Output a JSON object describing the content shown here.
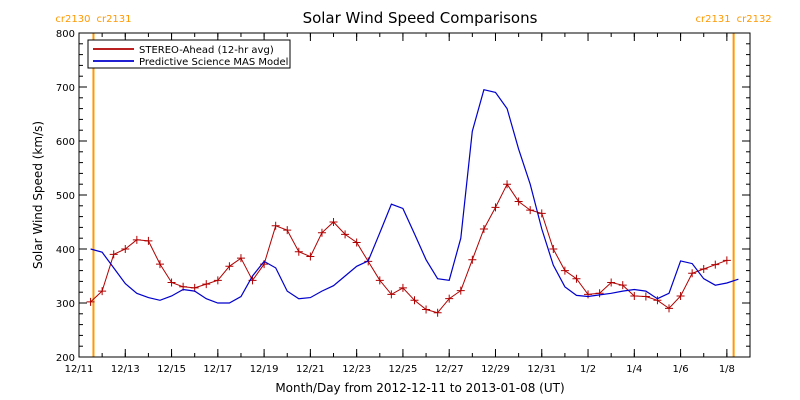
{
  "chart_data": {
    "type": "line",
    "title": "Solar Wind Speed Comparisons",
    "xlabel": "Month/Day from 2012-12-11 to 2013-01-08 (UT)",
    "ylabel": "Solar Wind Speed (km/s)",
    "x_unit": "date",
    "xlim": [
      "2012-12-11",
      "2013-01-09"
    ],
    "ylim": [
      200,
      800
    ],
    "x_ticks": [
      {
        "date": "2012-12-11",
        "label": "12/11"
      },
      {
        "date": "2012-12-13",
        "label": "12/13"
      },
      {
        "date": "2012-12-15",
        "label": "12/15"
      },
      {
        "date": "2012-12-17",
        "label": "12/17"
      },
      {
        "date": "2012-12-19",
        "label": "12/19"
      },
      {
        "date": "2012-12-21",
        "label": "12/21"
      },
      {
        "date": "2012-12-23",
        "label": "12/23"
      },
      {
        "date": "2012-12-25",
        "label": "12/25"
      },
      {
        "date": "2012-12-27",
        "label": "12/27"
      },
      {
        "date": "2012-12-29",
        "label": "12/29"
      },
      {
        "date": "2012-12-31",
        "label": "12/31"
      },
      {
        "date": "2013-01-02",
        "label": "1/2"
      },
      {
        "date": "2013-01-04",
        "label": "1/4"
      },
      {
        "date": "2013-01-06",
        "label": "1/6"
      },
      {
        "date": "2013-01-08",
        "label": "1/8"
      }
    ],
    "y_ticks": [
      200,
      300,
      400,
      500,
      600,
      700,
      800
    ],
    "legend_position": "top-left",
    "colors": {
      "stereo": "#b00000",
      "model": "#0000cc",
      "boundary": "#ff9900"
    },
    "series": [
      {
        "name": "STEREO-Ahead (12-hr avg)",
        "color": "#b00000",
        "marker": "plus",
        "points": [
          [
            "2012-12-11 12:00",
            302
          ],
          [
            "2012-12-12 00:00",
            322
          ],
          [
            "2012-12-12 12:00",
            390
          ],
          [
            "2012-12-13 00:00",
            400
          ],
          [
            "2012-12-13 12:00",
            417
          ],
          [
            "2012-12-14 00:00",
            415
          ],
          [
            "2012-12-14 12:00",
            372
          ],
          [
            "2012-12-15 00:00",
            338
          ],
          [
            "2012-12-15 12:00",
            330
          ],
          [
            "2012-12-16 00:00",
            328
          ],
          [
            "2012-12-16 12:00",
            335
          ],
          [
            "2012-12-17 00:00",
            342
          ],
          [
            "2012-12-17 12:00",
            368
          ],
          [
            "2012-12-18 00:00",
            383
          ],
          [
            "2012-12-18 12:00",
            342
          ],
          [
            "2012-12-19 00:00",
            372
          ],
          [
            "2012-12-19 12:00",
            443
          ],
          [
            "2012-12-20 00:00",
            435
          ],
          [
            "2012-12-20 12:00",
            395
          ],
          [
            "2012-12-21 00:00",
            386
          ],
          [
            "2012-12-21 12:00",
            430
          ],
          [
            "2012-12-22 00:00",
            450
          ],
          [
            "2012-12-22 12:00",
            427
          ],
          [
            "2012-12-23 00:00",
            412
          ],
          [
            "2012-12-23 12:00",
            377
          ],
          [
            "2012-12-24 00:00",
            342
          ],
          [
            "2012-12-24 12:00",
            316
          ],
          [
            "2012-12-25 00:00",
            328
          ],
          [
            "2012-12-25 12:00",
            305
          ],
          [
            "2012-12-26 00:00",
            288
          ],
          [
            "2012-12-26 12:00",
            282
          ],
          [
            "2012-12-27 00:00",
            308
          ],
          [
            "2012-12-27 12:00",
            323
          ],
          [
            "2012-12-28 00:00",
            380
          ],
          [
            "2012-12-28 12:00",
            437
          ],
          [
            "2012-12-29 00:00",
            477
          ],
          [
            "2012-12-29 12:00",
            520
          ],
          [
            "2012-12-30 00:00",
            488
          ],
          [
            "2012-12-30 12:00",
            472
          ],
          [
            "2012-12-31 00:00",
            466
          ],
          [
            "2012-12-31 12:00",
            400
          ],
          [
            "2013-01-01 00:00",
            360
          ],
          [
            "2013-01-01 12:00",
            345
          ],
          [
            "2013-01-02 00:00",
            316
          ],
          [
            "2013-01-02 12:00",
            318
          ],
          [
            "2013-01-03 00:00",
            338
          ],
          [
            "2013-01-03 12:00",
            333
          ],
          [
            "2013-01-04 00:00",
            313
          ],
          [
            "2013-01-04 12:00",
            312
          ],
          [
            "2013-01-05 00:00",
            305
          ],
          [
            "2013-01-05 12:00",
            290
          ],
          [
            "2013-01-06 00:00",
            313
          ],
          [
            "2013-01-06 12:00",
            355
          ],
          [
            "2013-01-07 00:00",
            363
          ],
          [
            "2013-01-07 12:00",
            371
          ],
          [
            "2013-01-08 00:00",
            379
          ]
        ]
      },
      {
        "name": "Predictive Science MAS Model",
        "color": "#0000cc",
        "marker": "none",
        "points": [
          [
            "2012-12-11 12:00",
            400
          ],
          [
            "2012-12-12 00:00",
            394
          ],
          [
            "2012-12-12 12:00",
            365
          ],
          [
            "2012-12-13 00:00",
            336
          ],
          [
            "2012-12-13 12:00",
            318
          ],
          [
            "2012-12-14 00:00",
            310
          ],
          [
            "2012-12-14 12:00",
            305
          ],
          [
            "2012-12-15 00:00",
            313
          ],
          [
            "2012-12-15 12:00",
            325
          ],
          [
            "2012-12-16 00:00",
            322
          ],
          [
            "2012-12-16 12:00",
            308
          ],
          [
            "2012-12-17 00:00",
            300
          ],
          [
            "2012-12-17 12:00",
            300
          ],
          [
            "2012-12-18 00:00",
            312
          ],
          [
            "2012-12-18 12:00",
            350
          ],
          [
            "2012-12-19 00:00",
            377
          ],
          [
            "2012-12-19 12:00",
            365
          ],
          [
            "2012-12-20 00:00",
            322
          ],
          [
            "2012-12-20 12:00",
            308
          ],
          [
            "2012-12-21 00:00",
            310
          ],
          [
            "2012-12-21 12:00",
            322
          ],
          [
            "2012-12-22 00:00",
            332
          ],
          [
            "2012-12-22 12:00",
            350
          ],
          [
            "2012-12-23 00:00",
            368
          ],
          [
            "2012-12-23 12:00",
            378
          ],
          [
            "2012-12-24 00:00",
            430
          ],
          [
            "2012-12-24 12:00",
            483
          ],
          [
            "2012-12-25 00:00",
            475
          ],
          [
            "2012-12-25 12:00",
            428
          ],
          [
            "2012-12-26 00:00",
            380
          ],
          [
            "2012-12-26 12:00",
            345
          ],
          [
            "2012-12-27 00:00",
            342
          ],
          [
            "2012-12-27 12:00",
            420
          ],
          [
            "2012-12-28 00:00",
            618
          ],
          [
            "2012-12-28 12:00",
            695
          ],
          [
            "2012-12-29 00:00",
            690
          ],
          [
            "2012-12-29 12:00",
            660
          ],
          [
            "2012-12-30 00:00",
            585
          ],
          [
            "2012-12-30 12:00",
            520
          ],
          [
            "2012-12-31 00:00",
            437
          ],
          [
            "2012-12-31 12:00",
            370
          ],
          [
            "2013-01-01 00:00",
            330
          ],
          [
            "2013-01-01 12:00",
            314
          ],
          [
            "2013-01-02 00:00",
            312
          ],
          [
            "2013-01-02 12:00",
            315
          ],
          [
            "2013-01-03 00:00",
            318
          ],
          [
            "2013-01-03 12:00",
            322
          ],
          [
            "2013-01-04 00:00",
            325
          ],
          [
            "2013-01-04 12:00",
            322
          ],
          [
            "2013-01-05 00:00",
            308
          ],
          [
            "2013-01-05 12:00",
            318
          ],
          [
            "2013-01-06 00:00",
            378
          ],
          [
            "2013-01-06 12:00",
            373
          ],
          [
            "2013-01-07 00:00",
            345
          ],
          [
            "2013-01-07 12:00",
            333
          ],
          [
            "2013-01-08 00:00",
            337
          ],
          [
            "2013-01-08 12:00",
            344
          ]
        ]
      }
    ],
    "carrington_boundaries": [
      {
        "date": "2012-12-11 15:00",
        "label_left": "cr2130",
        "label_right": "cr2131"
      },
      {
        "date": "2013-01-08 07:00",
        "label_left": "cr2131",
        "label_right": "cr2132"
      }
    ]
  }
}
